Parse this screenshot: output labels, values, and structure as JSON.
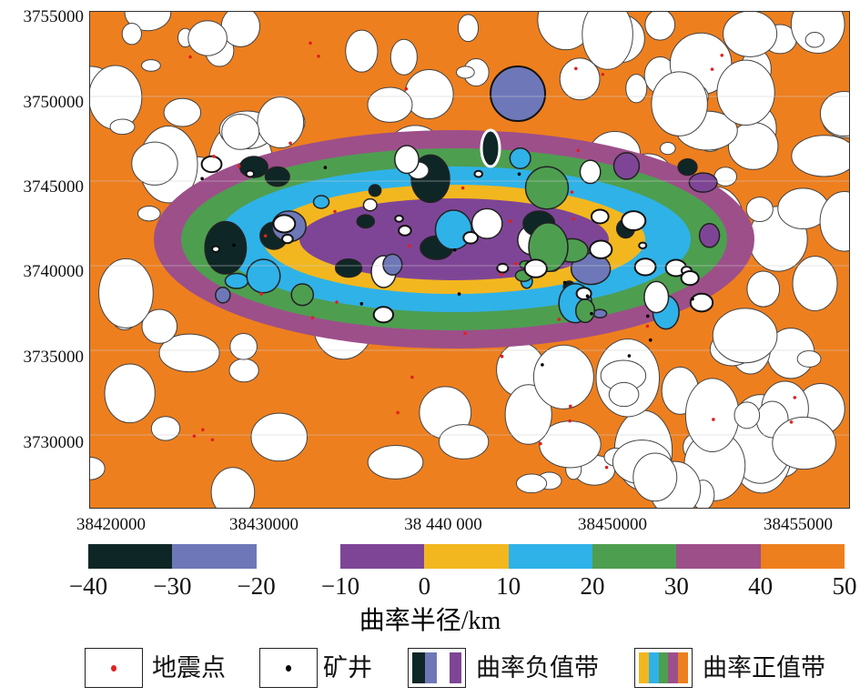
{
  "y_axis": {
    "ticks": [
      "3755000",
      "3750000",
      "3745000",
      "3740000",
      "3735000",
      "3730000"
    ]
  },
  "x_axis": {
    "ticks": [
      "38420000",
      "38430000",
      "38 440 000",
      "38450000",
      "38455000"
    ]
  },
  "colorbar": {
    "title": "曲率半径/km",
    "ticks": [
      "−40",
      "−30",
      "−20",
      "−10",
      "0",
      "10",
      "20",
      "30",
      "40",
      "50"
    ],
    "colors": [
      "#0f2626",
      "#6e78b8",
      "#ffffff",
      "#7e4596",
      "#f2b71f",
      "#2fb2e8",
      "#4e9e50",
      "#9d4f8a",
      "#ee7f1e"
    ]
  },
  "legend": {
    "earthquake": "地震点",
    "mine": "矿井",
    "negative": "曲率负值带",
    "positive": "曲率正值带",
    "earthquake_color": "#e02020",
    "mine_color": "#000000"
  }
}
